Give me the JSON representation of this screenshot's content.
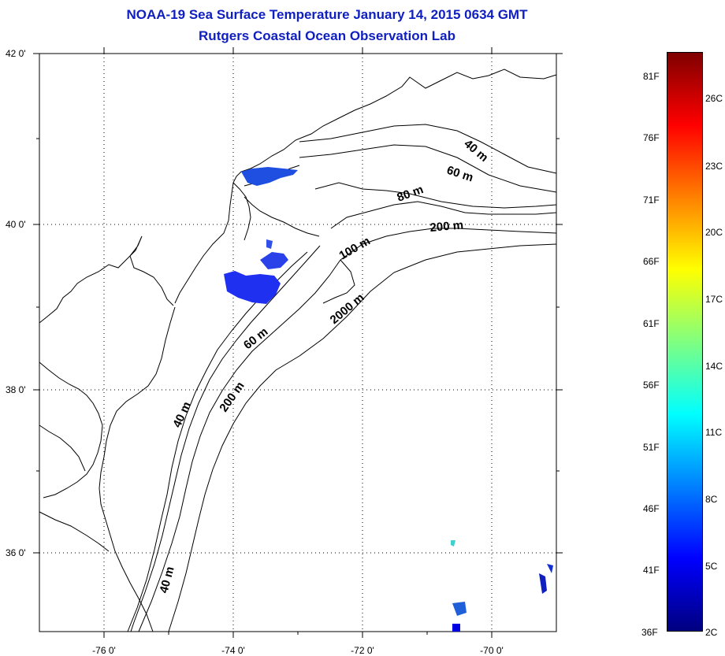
{
  "header": {
    "title": "NOAA-19 Sea Surface Temperature January 14, 2015 0634 GMT",
    "subtitle": "Rutgers Coastal Ocean Observation Lab"
  },
  "axes": {
    "latitude_labels": [
      "42 0'",
      "40 0'",
      "38 0'",
      "36 0'"
    ],
    "longitude_labels": [
      "-76 0'",
      "-74 0'",
      "-72 0'",
      "-70 0'"
    ],
    "lat_range": [
      35,
      42
    ],
    "lon_range": [
      -77,
      -69
    ],
    "grid": "dotted"
  },
  "contours": {
    "labels": [
      "40 m",
      "60 m",
      "80 m",
      "100 m",
      "200 m",
      "2000 m",
      "60 m",
      "40 m",
      "200 m",
      "40 m"
    ]
  },
  "colorbar": {
    "fahrenheit_labels": [
      "81F",
      "76F",
      "71F",
      "66F",
      "61F",
      "56F",
      "51F",
      "46F",
      "41F",
      "36F"
    ],
    "celsius_labels": [
      "26C",
      "23C",
      "20C",
      "17C",
      "14C",
      "11C",
      "8C",
      "5C",
      "2C"
    ],
    "colors": [
      "#00007f",
      "#0000ff",
      "#0080ff",
      "#00ffff",
      "#80ff80",
      "#ffff00",
      "#ff8000",
      "#ff0000",
      "#7f0000"
    ]
  }
}
